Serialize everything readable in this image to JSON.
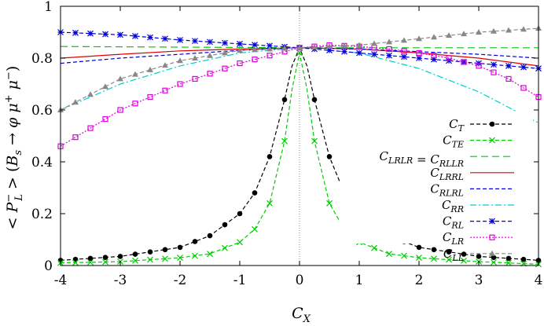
{
  "chart_data": {
    "type": "line",
    "xlabel": "C_X",
    "ylabel": "< P_L^- > (B_s → φ μ^+ μ^-)",
    "xlim": [
      -4,
      4
    ],
    "ylim": [
      0,
      1
    ],
    "xticks": [
      "-4",
      "-3",
      "-2",
      "-1",
      "0",
      "1",
      "2",
      "3",
      "4"
    ],
    "yticks": [
      "0",
      "0.2",
      "0.4",
      "0.6",
      "0.8",
      "1"
    ],
    "grid": false,
    "reference_lines": [
      "x = 0 (dotted)",
      "y = 0 (dotted)"
    ],
    "legend_position": "right",
    "series": [
      {
        "name": "C_T",
        "color": "#000000",
        "style": "dashed",
        "marker": "filled-circle",
        "x": [
          -4,
          -3,
          -2,
          -1.5,
          -1,
          -0.75,
          -0.5,
          -0.25,
          -0.125,
          0,
          0.125,
          0.25,
          0.5,
          0.75,
          1,
          1.5,
          2,
          3,
          4
        ],
        "y": [
          0.02,
          0.035,
          0.07,
          0.115,
          0.2,
          0.28,
          0.42,
          0.64,
          0.77,
          0.84,
          0.77,
          0.64,
          0.42,
          0.28,
          0.2,
          0.115,
          0.07,
          0.035,
          0.02
        ]
      },
      {
        "name": "C_TE",
        "color": "#00cc00",
        "style": "dashed",
        "marker": "x",
        "x": [
          -4,
          -3,
          -2,
          -1.5,
          -1,
          -0.75,
          -0.5,
          -0.25,
          -0.125,
          0,
          0.125,
          0.25,
          0.5,
          0.75,
          1,
          1.5,
          2,
          3,
          4
        ],
        "y": [
          0.01,
          0.015,
          0.03,
          0.045,
          0.09,
          0.14,
          0.24,
          0.48,
          0.68,
          0.82,
          0.68,
          0.48,
          0.24,
          0.14,
          0.09,
          0.045,
          0.03,
          0.015,
          0.005
        ]
      },
      {
        "name": "C_LRLR = C_RLLR",
        "color": "#00cc00",
        "style": "long-dash",
        "marker": "none",
        "x": [
          -4,
          0,
          4
        ],
        "y": [
          0.845,
          0.84,
          0.84
        ]
      },
      {
        "name": "C_LRRL",
        "color": "#dd0000",
        "style": "solid",
        "marker": "none",
        "x": [
          -4,
          -3,
          -2,
          -1,
          0,
          1,
          2,
          3,
          4
        ],
        "y": [
          0.8,
          0.815,
          0.828,
          0.835,
          0.84,
          0.835,
          0.82,
          0.8,
          0.77
        ]
      },
      {
        "name": "C_RLRL",
        "color": "#0000dd",
        "style": "dashed",
        "marker": "none",
        "x": [
          -4,
          -3,
          -2,
          -1,
          0,
          1,
          2,
          3,
          4
        ],
        "y": [
          0.78,
          0.8,
          0.815,
          0.83,
          0.84,
          0.835,
          0.825,
          0.815,
          0.8
        ]
      },
      {
        "name": "C_RR",
        "color": "#00cccc",
        "style": "dash-dot",
        "marker": "none",
        "x": [
          -4,
          -3,
          -2,
          -1,
          0,
          1,
          2,
          3,
          4
        ],
        "y": [
          0.6,
          0.7,
          0.77,
          0.82,
          0.84,
          0.82,
          0.76,
          0.67,
          0.55
        ]
      },
      {
        "name": "C_RL",
        "color": "#0000dd",
        "style": "dashed",
        "marker": "asterisk",
        "x": [
          -4,
          -3,
          -2,
          -1,
          0,
          1,
          2,
          3,
          4
        ],
        "y": [
          0.9,
          0.89,
          0.87,
          0.855,
          0.84,
          0.82,
          0.8,
          0.78,
          0.76
        ]
      },
      {
        "name": "C_LR",
        "color": "#dd00dd",
        "style": "dotted",
        "marker": "open-square",
        "x": [
          -4,
          -3,
          -2,
          -1,
          0,
          0.5,
          1,
          1.5,
          2,
          2.5,
          3,
          3.5,
          4
        ],
        "y": [
          0.46,
          0.6,
          0.7,
          0.78,
          0.84,
          0.85,
          0.845,
          0.835,
          0.82,
          0.8,
          0.77,
          0.72,
          0.65
        ]
      },
      {
        "name": "C_LL",
        "color": "#888888",
        "style": "dashed",
        "marker": "filled-triangle",
        "x": [
          -4,
          -3,
          -2,
          -1,
          0,
          1,
          2,
          3,
          4
        ],
        "y": [
          0.6,
          0.72,
          0.79,
          0.83,
          0.84,
          0.85,
          0.875,
          0.9,
          0.915
        ]
      }
    ]
  }
}
